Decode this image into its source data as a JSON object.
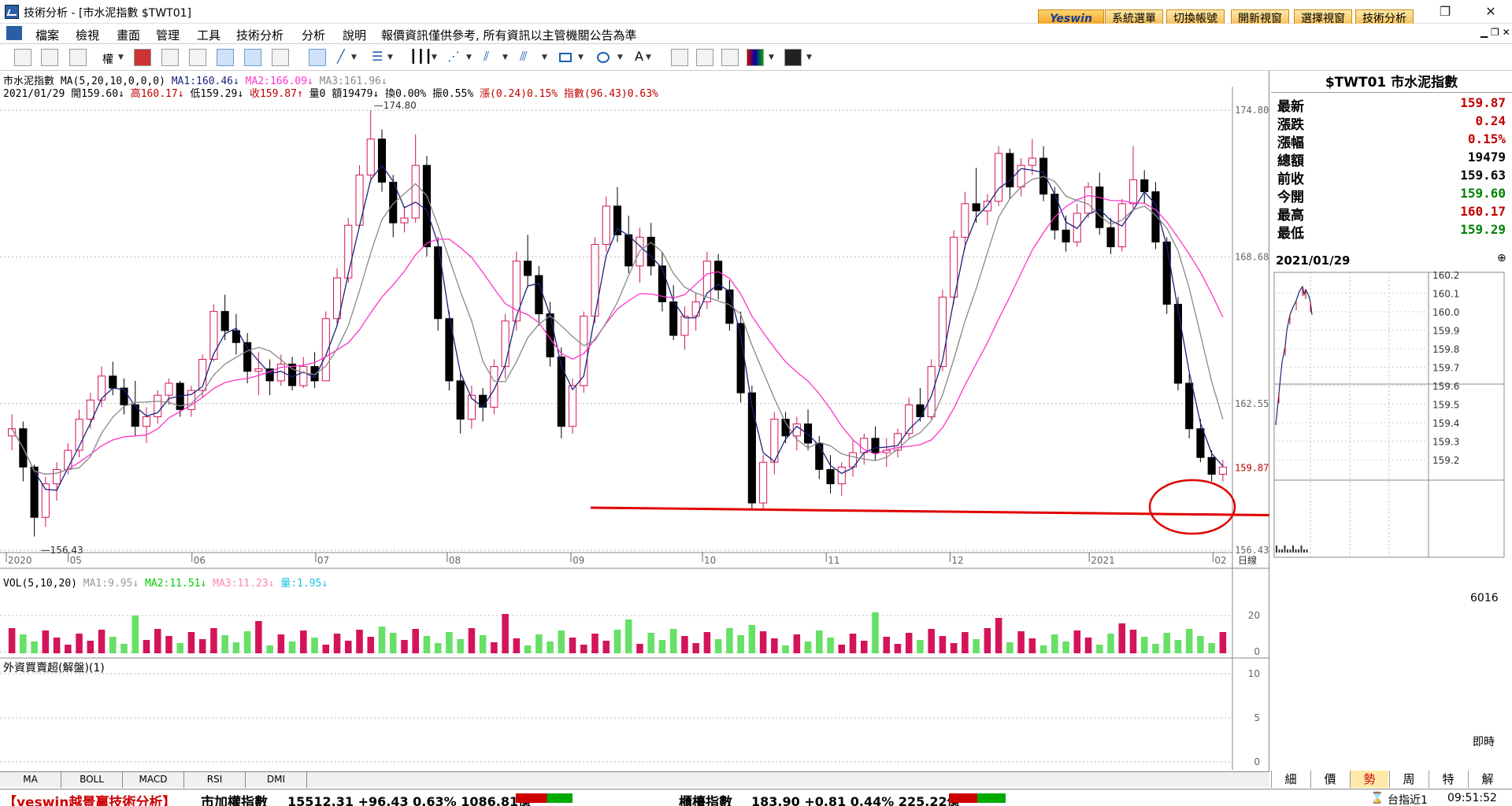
{
  "window": {
    "title": "技術分析 - [市水泥指數 $TWT01]"
  },
  "top_buttons": {
    "logo": "Yeswin",
    "b1": "系統選單",
    "b2": "切換帳號",
    "b3": "開新視窗",
    "b4": "選擇視窗",
    "b5": "技術分析"
  },
  "menu": [
    "檔案",
    "檢視",
    "畫面",
    "管理",
    "工具",
    "技術分析",
    "分析",
    "說明"
  ],
  "menu_notice": "報價資訊僅供參考, 所有資訊以主管機關公告為準",
  "chart_header": {
    "line1_name": "市水泥指數",
    "line1_ma": "MA(5,20,10,0,0,0)",
    "ma1": "MA1:160.46↓",
    "ma2": "MA2:166.09↓",
    "ma3": "MA3:161.96↓",
    "line2_date": "2021/01/29",
    "open": "開159.60↓",
    "high": "高160.17↓",
    "low": "低159.29↓",
    "close": "收159.87↑",
    "vol": "量0",
    "amt": "額19479↓",
    "turn": "換0.00%",
    "amp": "振0.55%",
    "chg": "漲(0.24)0.15%",
    "idx": "指數(96.43)0.63%"
  },
  "chart_data": {
    "type": "candlestick",
    "price_axis": [
      "174.80",
      "168.68",
      "162.55",
      "159.87",
      "156.43"
    ],
    "x_labels": [
      "2020",
      "05",
      "06",
      "07",
      "08",
      "09",
      "10",
      "11",
      "12",
      "2021",
      "02"
    ],
    "x_axis_title": "日線",
    "high_mark": "174.80",
    "low_mark": "156.43",
    "ylim": [
      156.0,
      175.2
    ],
    "candles": [
      [
        161.2,
        162.1,
        160.6,
        161.5
      ],
      [
        161.5,
        161.8,
        159.3,
        159.9
      ],
      [
        159.9,
        160.0,
        157.0,
        157.8
      ],
      [
        157.8,
        159.5,
        157.4,
        159.2
      ],
      [
        159.2,
        160.1,
        158.5,
        159.8
      ],
      [
        159.8,
        160.9,
        159.6,
        160.6
      ],
      [
        160.6,
        162.3,
        160.3,
        161.9
      ],
      [
        161.9,
        163.0,
        161.5,
        162.7
      ],
      [
        162.7,
        164.1,
        162.4,
        163.7
      ],
      [
        163.7,
        164.3,
        162.9,
        163.2
      ],
      [
        163.2,
        163.6,
        162.1,
        162.5
      ],
      [
        162.5,
        163.5,
        161.2,
        161.6
      ],
      [
        161.6,
        162.4,
        160.9,
        162.0
      ],
      [
        162.0,
        163.1,
        161.7,
        162.9
      ],
      [
        162.9,
        163.6,
        162.5,
        163.4
      ],
      [
        163.4,
        163.5,
        162.0,
        162.3
      ],
      [
        162.3,
        163.3,
        162.0,
        163.1
      ],
      [
        163.1,
        164.6,
        162.8,
        164.4
      ],
      [
        164.4,
        166.7,
        164.3,
        166.4
      ],
      [
        166.4,
        167.1,
        165.2,
        165.6
      ],
      [
        165.6,
        166.3,
        164.6,
        165.1
      ],
      [
        165.1,
        165.5,
        163.4,
        163.9
      ],
      [
        163.9,
        164.7,
        162.9,
        164.0
      ],
      [
        164.0,
        164.4,
        162.9,
        163.5
      ],
      [
        163.5,
        164.6,
        163.3,
        164.2
      ],
      [
        164.2,
        164.5,
        163.1,
        163.3
      ],
      [
        163.3,
        164.5,
        163.2,
        164.1
      ],
      [
        164.1,
        164.7,
        163.2,
        163.5
      ],
      [
        163.5,
        166.4,
        163.5,
        166.1
      ],
      [
        166.1,
        168.2,
        165.8,
        167.8
      ],
      [
        167.8,
        170.3,
        167.6,
        170.0
      ],
      [
        170.0,
        172.5,
        169.9,
        172.1
      ],
      [
        172.1,
        174.8,
        171.8,
        173.6
      ],
      [
        173.6,
        174.0,
        171.4,
        171.8
      ],
      [
        171.8,
        172.1,
        169.5,
        170.1
      ],
      [
        170.1,
        170.8,
        169.7,
        170.3
      ],
      [
        170.3,
        173.8,
        170.1,
        172.5
      ],
      [
        172.5,
        172.9,
        168.7,
        169.1
      ],
      [
        169.1,
        169.5,
        165.6,
        166.1
      ],
      [
        166.1,
        166.4,
        163.1,
        163.5
      ],
      [
        163.5,
        163.9,
        161.3,
        161.9
      ],
      [
        161.9,
        163.3,
        161.5,
        162.9
      ],
      [
        162.9,
        163.2,
        161.8,
        162.4
      ],
      [
        162.4,
        164.4,
        162.1,
        164.1
      ],
      [
        164.1,
        166.3,
        163.6,
        166.0
      ],
      [
        166.0,
        168.9,
        165.6,
        168.5
      ],
      [
        168.5,
        169.6,
        167.4,
        167.9
      ],
      [
        167.9,
        168.3,
        165.8,
        166.3
      ],
      [
        166.3,
        166.8,
        164.1,
        164.5
      ],
      [
        164.5,
        164.9,
        161.1,
        161.6
      ],
      [
        161.6,
        163.6,
        161.3,
        163.3
      ],
      [
        163.3,
        166.4,
        163.0,
        166.2
      ],
      [
        166.2,
        169.5,
        165.9,
        169.2
      ],
      [
        169.2,
        171.2,
        168.9,
        170.8
      ],
      [
        170.8,
        171.6,
        169.3,
        169.6
      ],
      [
        169.6,
        170.4,
        168.0,
        168.3
      ],
      [
        168.3,
        169.9,
        167.6,
        169.5
      ],
      [
        169.5,
        170.1,
        167.9,
        168.3
      ],
      [
        168.3,
        168.9,
        166.4,
        166.8
      ],
      [
        166.8,
        167.5,
        165.2,
        165.4
      ],
      [
        165.4,
        166.6,
        164.8,
        166.2
      ],
      [
        166.2,
        167.2,
        165.6,
        166.8
      ],
      [
        166.8,
        168.9,
        166.5,
        168.5
      ],
      [
        168.5,
        168.8,
        166.9,
        167.3
      ],
      [
        167.3,
        167.7,
        165.6,
        165.9
      ],
      [
        165.9,
        166.4,
        162.6,
        163.0
      ],
      [
        163.0,
        163.3,
        158.1,
        158.4
      ],
      [
        158.4,
        160.4,
        158.1,
        160.1
      ],
      [
        160.1,
        162.2,
        159.6,
        161.9
      ],
      [
        161.9,
        162.2,
        160.9,
        161.2
      ],
      [
        161.2,
        162.0,
        160.6,
        161.7
      ],
      [
        161.7,
        162.3,
        160.6,
        160.9
      ],
      [
        160.9,
        161.2,
        159.4,
        159.8
      ],
      [
        159.8,
        160.4,
        158.8,
        159.2
      ],
      [
        159.2,
        160.1,
        158.7,
        159.9
      ],
      [
        159.9,
        161.0,
        159.5,
        160.5
      ],
      [
        160.5,
        161.3,
        160.0,
        161.1
      ],
      [
        161.1,
        161.6,
        160.2,
        160.5
      ],
      [
        160.5,
        161.1,
        159.9,
        160.6
      ],
      [
        160.6,
        161.5,
        160.3,
        161.3
      ],
      [
        161.3,
        162.8,
        161.1,
        162.5
      ],
      [
        162.5,
        163.2,
        161.8,
        162.0
      ],
      [
        162.0,
        164.4,
        161.9,
        164.1
      ],
      [
        164.1,
        167.3,
        163.9,
        167.0
      ],
      [
        167.0,
        169.8,
        166.7,
        169.5
      ],
      [
        169.5,
        171.4,
        169.0,
        170.9
      ],
      [
        170.9,
        172.4,
        170.1,
        170.6
      ],
      [
        170.6,
        171.3,
        170.0,
        171.0
      ],
      [
        171.0,
        173.3,
        170.8,
        173.0
      ],
      [
        173.0,
        173.2,
        171.1,
        171.6
      ],
      [
        171.6,
        172.8,
        171.2,
        172.5
      ],
      [
        172.5,
        173.6,
        172.1,
        172.8
      ],
      [
        172.8,
        173.3,
        171.0,
        171.3
      ],
      [
        171.3,
        171.6,
        169.4,
        169.8
      ],
      [
        169.8,
        170.4,
        168.9,
        169.3
      ],
      [
        169.3,
        170.9,
        169.1,
        170.5
      ],
      [
        170.5,
        171.8,
        170.3,
        171.6
      ],
      [
        171.6,
        172.2,
        169.6,
        169.9
      ],
      [
        169.9,
        170.3,
        168.8,
        169.1
      ],
      [
        169.1,
        171.1,
        168.9,
        170.9
      ],
      [
        170.9,
        173.3,
        170.6,
        171.9
      ],
      [
        171.9,
        172.3,
        170.9,
        171.4
      ],
      [
        171.4,
        171.8,
        169.0,
        169.3
      ],
      [
        169.3,
        169.5,
        166.3,
        166.7
      ],
      [
        166.7,
        167.0,
        163.1,
        163.4
      ],
      [
        163.4,
        163.8,
        161.1,
        161.5
      ],
      [
        161.5,
        161.9,
        160.1,
        160.3
      ],
      [
        160.3,
        160.6,
        159.3,
        159.6
      ],
      [
        159.6,
        160.2,
        159.3,
        159.9
      ]
    ],
    "volume_axis": [
      "20",
      "0"
    ],
    "indicator_axis": [
      "10",
      "5",
      "0"
    ]
  },
  "vol_header": {
    "name": "VOL(5,10,20)",
    "ma1": "MA1:9.95↓",
    "ma2": "MA2:11.51↓",
    "ma3": "MA3:11.23↓",
    "vol": "量:1.95↓"
  },
  "indicator_header": "外資買賣超(解盤)(1)",
  "bottom_tabs": [
    "MA",
    "BOLL",
    "MACD",
    "RSI",
    "DMI"
  ],
  "quote": {
    "title": "$TWT01 市水泥指數",
    "rows": [
      {
        "label": "最新",
        "value": "159.87",
        "color": "#c00000"
      },
      {
        "label": "漲跌",
        "value": "0.24",
        "color": "#c00000"
      },
      {
        "label": "漲幅",
        "value": "0.15%",
        "color": "#c00000"
      },
      {
        "label": "總額",
        "value": "19479",
        "color": "#000000"
      },
      {
        "label": "前收",
        "value": "159.63",
        "color": "#000000"
      },
      {
        "label": "今開",
        "value": "159.60",
        "color": "#008000"
      },
      {
        "label": "最高",
        "value": "160.17",
        "color": "#c00000"
      },
      {
        "label": "最低",
        "value": "159.29",
        "color": "#008000"
      }
    ],
    "intraday_date": "2021/01/29",
    "intraday_axis": [
      "160.2",
      "160.1",
      "160.0",
      "159.9",
      "159.8",
      "159.7",
      "159.6",
      "159.5",
      "159.4",
      "159.3",
      "159.2"
    ],
    "intraday_vol": "6016",
    "intraday_label": "即時",
    "tabs": [
      "細",
      "價",
      "勢",
      "周",
      "特",
      "解"
    ]
  },
  "status": {
    "brand": "【yeswin越景赢技術分析】",
    "idx1_name": "市加權指數",
    "idx1_val": "15512.31 +96.43 0.63% 1086.81億",
    "idx2_name": "櫃檯指數",
    "idx2_val": "183.90 +0.81 0.44% 225.22億",
    "right_label": "台指近1",
    "time": "09:51:52"
  },
  "colors": {
    "up": "#d4145a",
    "down": "#000000",
    "ma1": "#1a237e",
    "ma2": "#ff33cc",
    "ma3": "#888888",
    "annotation": "#e00000",
    "vol_up": "#d4145a",
    "vol_down": "#66e066"
  }
}
